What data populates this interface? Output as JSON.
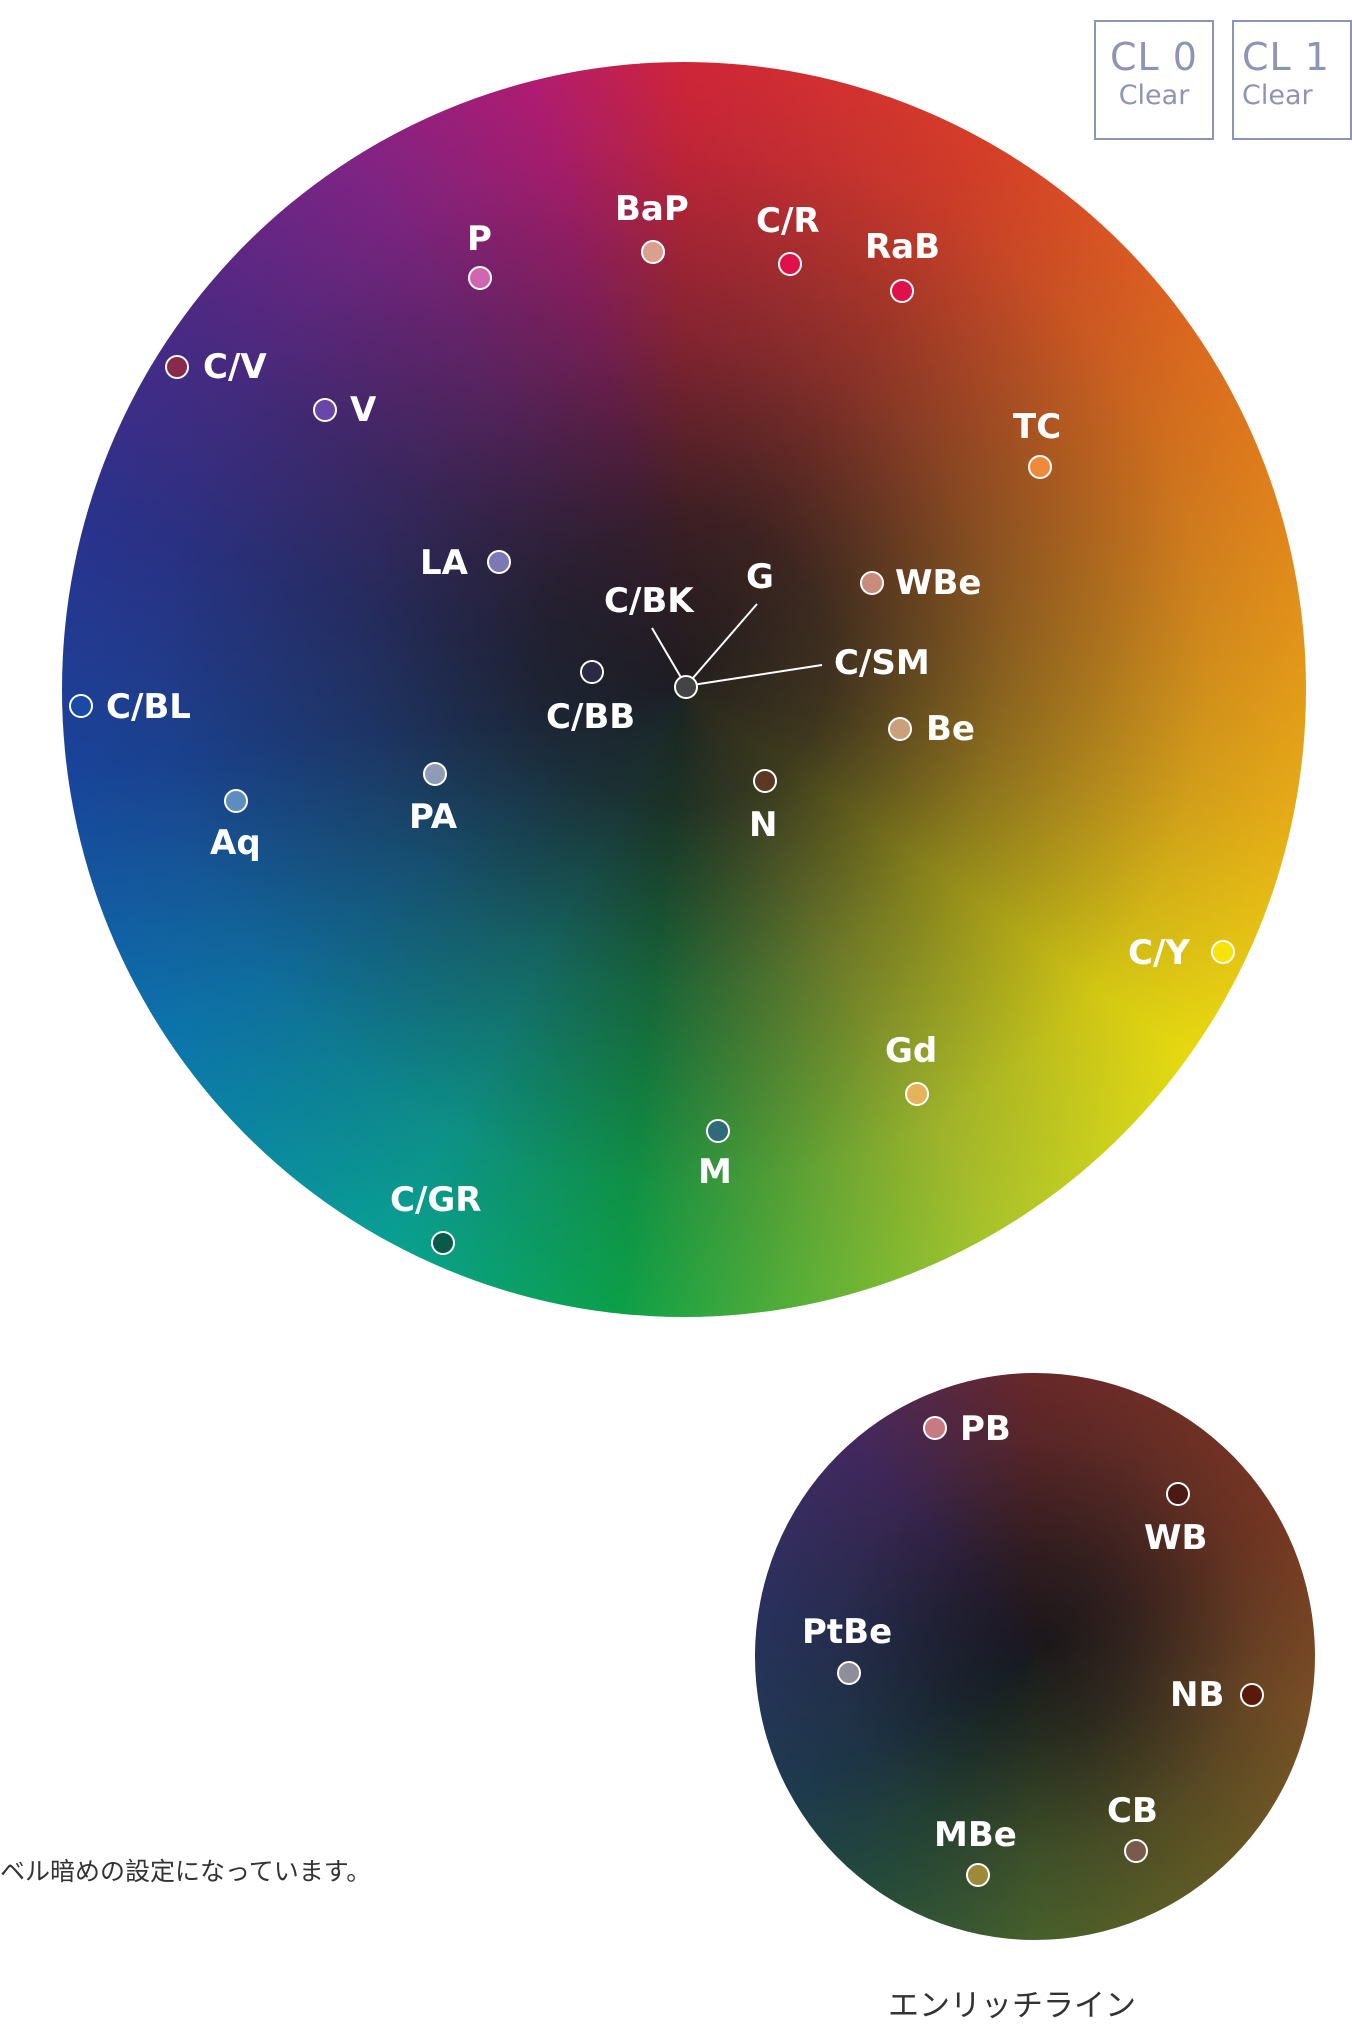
{
  "legend_boxes": [
    {
      "code": "CL 0",
      "sub": "Clear"
    },
    {
      "code": "CL 1",
      "sub": "Clear"
    }
  ],
  "main_wheel": {
    "points": [
      {
        "id": "P",
        "label": "P",
        "color": "#d066b0"
      },
      {
        "id": "BaP",
        "label": "BaP",
        "color": "#d9a08e"
      },
      {
        "id": "CR",
        "label": "C/R",
        "color": "#e0104a"
      },
      {
        "id": "RaB",
        "label": "RaB",
        "color": "#e0104a"
      },
      {
        "id": "CV",
        "label": "C/V",
        "color": "#8a2a4a"
      },
      {
        "id": "V",
        "label": "V",
        "color": "#6a46a8"
      },
      {
        "id": "TC",
        "label": "TC",
        "color": "#f08a3a"
      },
      {
        "id": "LA",
        "label": "LA",
        "color": "#7c78b6"
      },
      {
        "id": "CBK",
        "label": "C/BK",
        "color": "#444444"
      },
      {
        "id": "G",
        "label": "G",
        "color": "#555555"
      },
      {
        "id": "CSM",
        "label": "C/SM",
        "color": "#555555"
      },
      {
        "id": "WBe",
        "label": "WBe",
        "color": "#c98b7c"
      },
      {
        "id": "CBB",
        "label": "C/BB",
        "color": "#2a2a44"
      },
      {
        "id": "CBL",
        "label": "C/BL",
        "color": "#1a4aa6"
      },
      {
        "id": "Be",
        "label": "Be",
        "color": "#caa07a"
      },
      {
        "id": "PA",
        "label": "PA",
        "color": "#8e9cb8"
      },
      {
        "id": "Aq",
        "label": "Aq",
        "color": "#5c8cc0"
      },
      {
        "id": "N",
        "label": "N",
        "color": "#5a3a22"
      },
      {
        "id": "CY",
        "label": "C/Y",
        "color": "#f7e20a"
      },
      {
        "id": "Gd",
        "label": "Gd",
        "color": "#e6b25a"
      },
      {
        "id": "M",
        "label": "M",
        "color": "#2f6a7a"
      },
      {
        "id": "CGR",
        "label": "C/GR",
        "color": "#0a5a4a"
      }
    ]
  },
  "enrich_wheel": {
    "caption": "エンリッチライン",
    "points": [
      {
        "id": "PB",
        "label": "PB",
        "color": "#c77a82"
      },
      {
        "id": "WB",
        "label": "WB",
        "color": "#4a1a14"
      },
      {
        "id": "PtBe",
        "label": "PtBe",
        "color": "#8d8e98"
      },
      {
        "id": "NB",
        "label": "NB",
        "color": "#5a1a0a"
      },
      {
        "id": "CB",
        "label": "CB",
        "color": "#7a5a4a"
      },
      {
        "id": "MBe",
        "label": "MBe",
        "color": "#9c8a3a"
      }
    ]
  },
  "note": "ベル暗めの設定になっています。"
}
